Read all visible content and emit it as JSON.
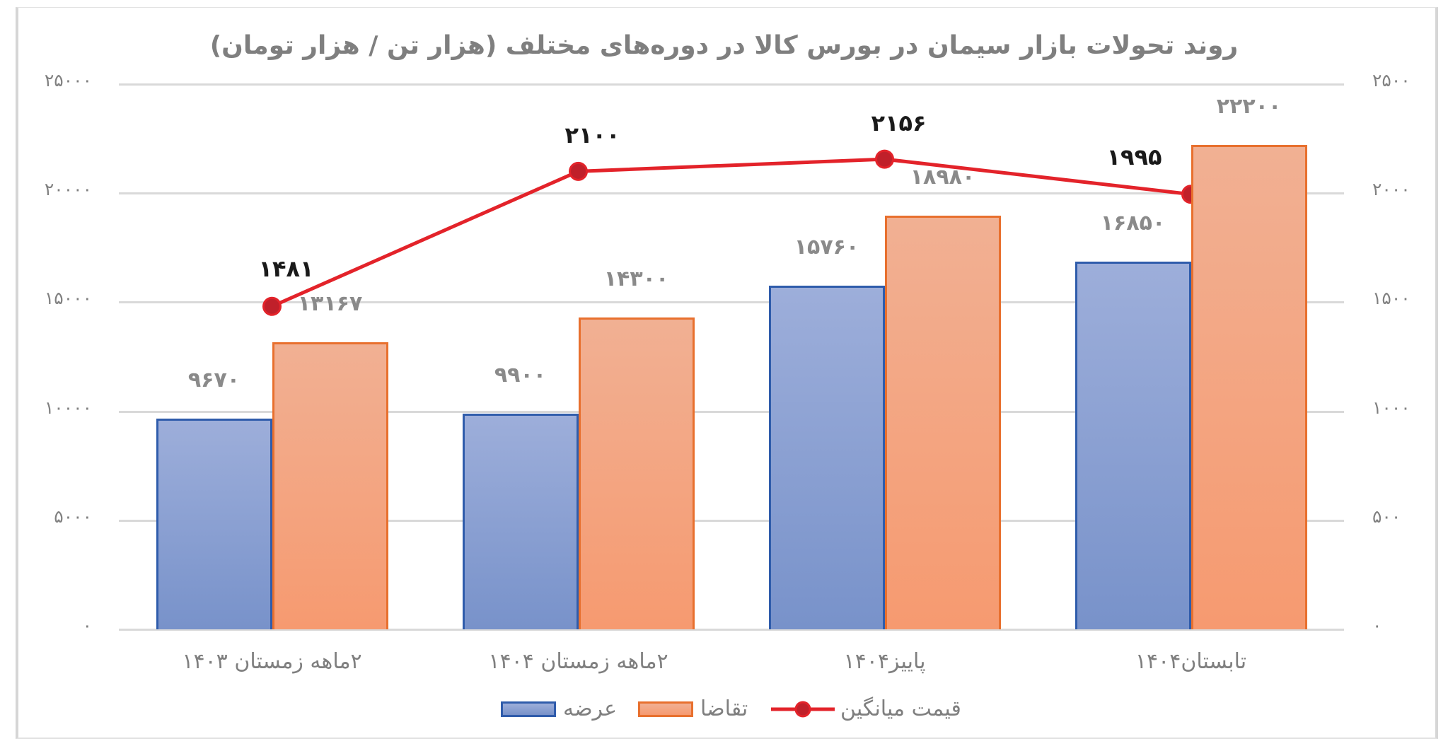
{
  "chart_data": {
    "type": "bar+line",
    "title": "روند تحولات بازار سیمان در بورس کالا در دوره‌های مختلف (هزار تن / هزار تومان)",
    "categories": [
      "۲ماهه زمستان ۱۴۰۳",
      "۲ماهه زمستان ۱۴۰۴",
      "پاییز۱۴۰۴",
      "تابستان۱۴۰۴"
    ],
    "series": [
      {
        "name": "عرضه",
        "type": "bar",
        "axis": "left",
        "color": "#7892CA",
        "border": "#2F5CAB",
        "values": [
          9670,
          9900,
          15760,
          16850
        ],
        "labels": [
          "۹۶۷۰",
          "۹۹۰۰",
          "۱۵۷۶۰",
          "۱۶۸۵۰"
        ]
      },
      {
        "name": "تقاضا",
        "type": "bar",
        "axis": "left",
        "color": "#F69A70",
        "border": "#E8702E",
        "values": [
          13167,
          14300,
          18980,
          22200
        ],
        "labels": [
          "۱۳۱۶۷",
          "۱۴۳۰۰",
          "۱۸۹۸۰",
          "۲۲۲۰۰"
        ]
      },
      {
        "name": "قیمت میانگین",
        "type": "line",
        "axis": "right",
        "color": "#E3232A",
        "values": [
          1481,
          2100,
          2156,
          1995
        ],
        "labels": [
          "۱۴۸۱",
          "۲۱۰۰",
          "۲۱۵۶",
          "۱۹۹۵"
        ]
      }
    ],
    "y_left": {
      "min": 0,
      "max": 25000,
      "step": 5000,
      "ticks": [
        "۰",
        "۵۰۰۰",
        "۱۰۰۰۰",
        "۱۵۰۰۰",
        "۲۰۰۰۰",
        "۲۵۰۰۰"
      ]
    },
    "y_right": {
      "min": 0,
      "max": 2500,
      "step": 500,
      "ticks": [
        "۰",
        "۵۰۰",
        "۱۰۰۰",
        "۱۵۰۰",
        "۲۰۰۰",
        "۲۵۰۰"
      ]
    },
    "xlabel": "",
    "ylabel": "",
    "grid": true,
    "legend_position": "bottom"
  },
  "legend": {
    "supply": "عرضه",
    "demand": "تقاضا",
    "price": "قیمت میانگین"
  }
}
